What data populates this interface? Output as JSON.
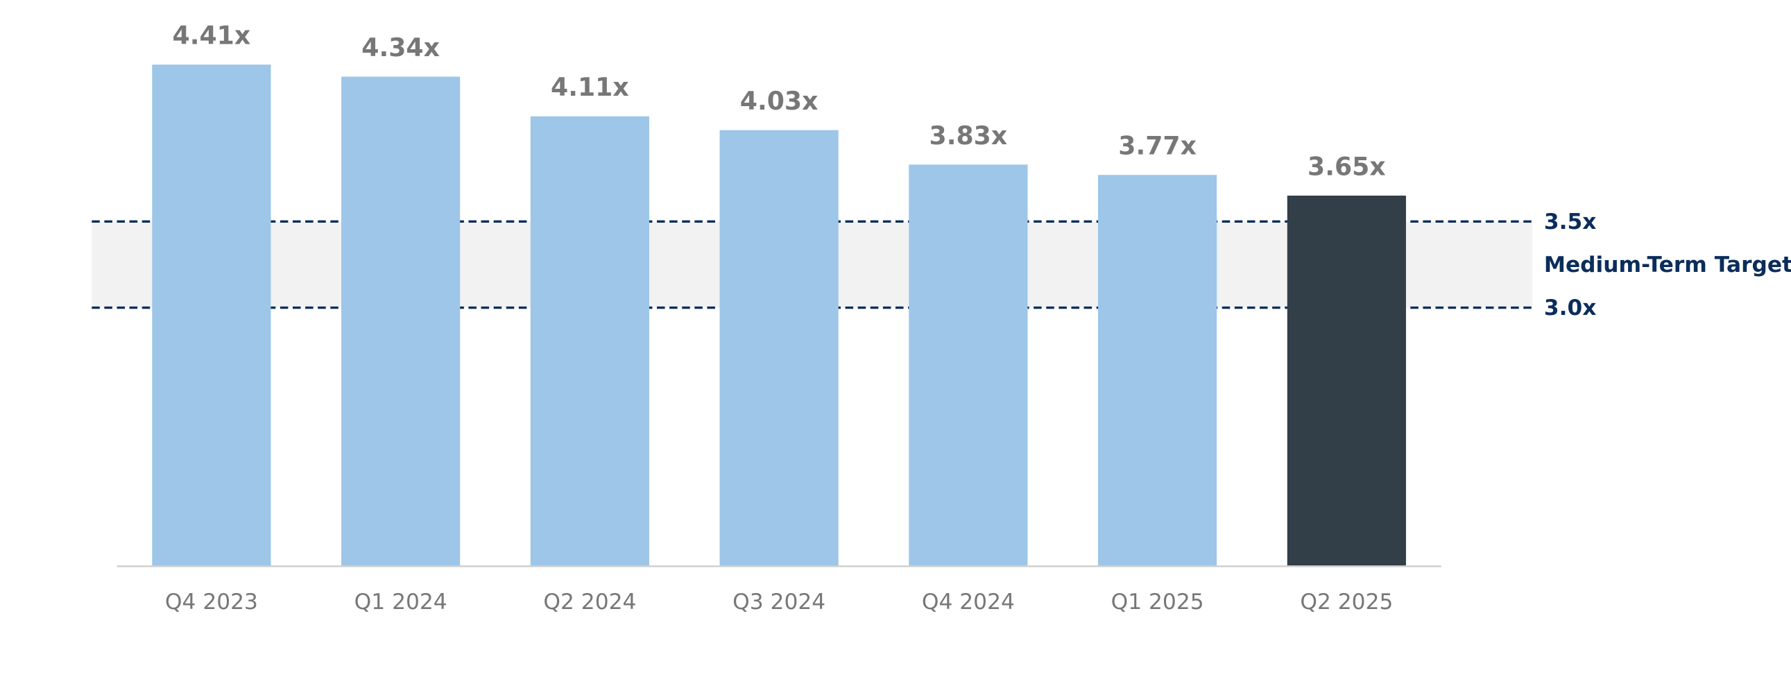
{
  "chart_data": {
    "type": "bar",
    "categories": [
      "Q4 2023",
      "Q1 2024",
      "Q2 2024",
      "Q3 2024",
      "Q4 2024",
      "Q1 2025",
      "Q2 2025"
    ],
    "values": [
      4.41,
      4.34,
      4.11,
      4.03,
      3.83,
      3.77,
      3.65
    ],
    "value_labels": [
      "4.41x",
      "4.34x",
      "4.11x",
      "4.03x",
      "3.83x",
      "3.77x",
      "3.65x"
    ],
    "colors": [
      "#9dc6e8",
      "#9dc6e8",
      "#9dc6e8",
      "#9dc6e8",
      "#9dc6e8",
      "#9dc6e8",
      "#323e48"
    ],
    "ylim": [
      1.5,
      4.5
    ],
    "target_lines": [
      {
        "value": 3.5,
        "label": "3.5x"
      },
      {
        "value": 3.0,
        "label": "3.0x"
      }
    ],
    "target_label": "Medium-Term Target",
    "target_color": "#0b2d5b",
    "band_color": "#f2f2f2"
  }
}
